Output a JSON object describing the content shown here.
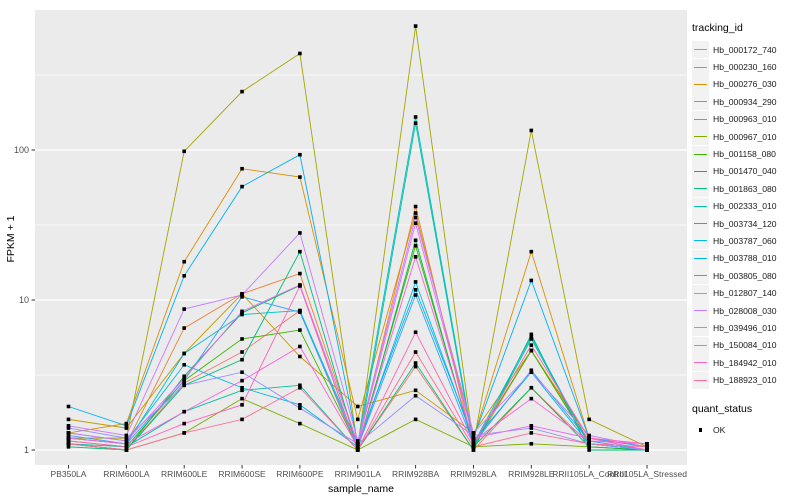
{
  "legend": {
    "tracking_title": "tracking_id",
    "quant_title": "quant_status",
    "quant_items": [
      "OK"
    ]
  },
  "panel": {
    "background": "#EBEBEB",
    "gridline_color": "#FFFFFF",
    "tick_color": "#333333",
    "label_color": "#4D4D4D"
  },
  "chart_data": {
    "type": "line",
    "title": "",
    "xlabel": "sample_name",
    "ylabel": "FPKM + 1",
    "scale": "log10",
    "yticks": [
      1,
      10,
      100
    ],
    "ytick_labels": [
      "1",
      "10",
      "100"
    ],
    "minor_gridlines": [
      3.1623,
      31.623,
      316.23
    ],
    "ylim": [
      0.79,
      860
    ],
    "grid": true,
    "legend_position": "right",
    "point_marker": "black-square",
    "categories": [
      "PB350LA",
      "RRIM600LA",
      "RRIM600LE",
      "RRIM600SE",
      "RRIM600PE",
      "RRIM901LA",
      "RRIM928BA",
      "RRIM928LA",
      "RRIM928LE",
      "RRII105LA_Control",
      "RRII105LA_Stressed"
    ],
    "series": [
      {
        "name": "Hb_000172_740",
        "color": "#F8766D",
        "values": [
          1.1,
          1.0,
          2.8,
          4.5,
          8.5,
          1.0,
          3.6,
          1.0,
          2.6,
          1.1,
          1.0
        ]
      },
      {
        "name": "Hb_000230_160",
        "color": "#EA8331",
        "values": [
          1.2,
          1.1,
          6.5,
          11,
          15,
          1.1,
          42,
          1.05,
          4.6,
          1.15,
          1.0
        ]
      },
      {
        "name": "Hb_000276_030",
        "color": "#D89000",
        "values": [
          1.3,
          1.5,
          18,
          75,
          66,
          1.6,
          38,
          1.2,
          21,
          1.2,
          1.05
        ]
      },
      {
        "name": "Hb_000934_290",
        "color": "#C09B00",
        "values": [
          1.6,
          1.4,
          4.4,
          11,
          4.2,
          1.95,
          2.5,
          1.3,
          4.6,
          1.2,
          1.0
        ]
      },
      {
        "name": "Hb_000963_010",
        "color": "#A3A500",
        "values": [
          1.2,
          1.2,
          98,
          245,
          440,
          1.05,
          670,
          1.1,
          135,
          1.6,
          1.05
        ]
      },
      {
        "name": "Hb_000967_010",
        "color": "#7CAE00",
        "values": [
          1.1,
          1.0,
          1.3,
          2.2,
          1.5,
          1.0,
          1.6,
          1.05,
          1.1,
          1.05,
          1.0
        ]
      },
      {
        "name": "Hb_001158_080",
        "color": "#39B600",
        "values": [
          1.15,
          1.05,
          2.9,
          5.5,
          6.3,
          1.05,
          23,
          1.1,
          4.6,
          1.1,
          1.0
        ]
      },
      {
        "name": "Hb_001470_040",
        "color": "#00BB4E",
        "values": [
          1.1,
          1.0,
          3.1,
          8.2,
          12.5,
          1.0,
          25,
          1.05,
          2.6,
          1.05,
          1.0
        ]
      },
      {
        "name": "Hb_001863_080",
        "color": "#00BF7D",
        "values": [
          1.05,
          1.0,
          2.7,
          4.0,
          21,
          1.0,
          3.8,
          1.0,
          5.9,
          1.0,
          1.0
        ]
      },
      {
        "name": "Hb_002333_010",
        "color": "#00C1A3",
        "values": [
          1.1,
          1.05,
          1.8,
          2.5,
          2.7,
          1.0,
          151,
          1.05,
          5.5,
          1.1,
          1.0
        ]
      },
      {
        "name": "Hb_003734_120",
        "color": "#00BFC4",
        "values": [
          1.2,
          1.1,
          4.4,
          8.0,
          8.5,
          1.1,
          166,
          1.1,
          5.7,
          1.1,
          1.0
        ]
      },
      {
        "name": "Hb_003787_060",
        "color": "#00BAE0",
        "values": [
          1.3,
          1.15,
          3.7,
          2.6,
          2.0,
          1.05,
          13.2,
          1.15,
          3.3,
          1.1,
          1.0
        ]
      },
      {
        "name": "Hb_003788_010",
        "color": "#00B0F6",
        "values": [
          1.95,
          1.45,
          14.5,
          57,
          93,
          1.1,
          11.7,
          1.2,
          13.5,
          1.2,
          1.05
        ]
      },
      {
        "name": "Hb_003805_080",
        "color": "#35A2FF",
        "values": [
          1.25,
          1.1,
          2.9,
          10.5,
          8.3,
          1.05,
          10.8,
          1.1,
          3.4,
          1.15,
          1.0
        ]
      },
      {
        "name": "Hb_012807_140",
        "color": "#9590FF",
        "values": [
          1.4,
          1.2,
          2.7,
          3.3,
          1.9,
          1.1,
          2.3,
          1.25,
          1.4,
          1.1,
          1.0
        ]
      },
      {
        "name": "Hb_028008_030",
        "color": "#C77CFF",
        "values": [
          1.45,
          1.25,
          8.7,
          10.8,
          28,
          1.15,
          35.5,
          1.3,
          3.3,
          1.25,
          1.05
        ]
      },
      {
        "name": "Hb_039496_010",
        "color": "#E76BF3",
        "values": [
          1.3,
          1.15,
          3.0,
          8.4,
          12.6,
          1.1,
          32.5,
          1.2,
          1.45,
          1.2,
          1.0
        ]
      },
      {
        "name": "Hb_150084_010",
        "color": "#FA62DB",
        "values": [
          1.2,
          1.1,
          1.8,
          2.9,
          4.9,
          1.05,
          19.4,
          1.15,
          2.2,
          1.15,
          1.1
        ]
      },
      {
        "name": "Hb_184942_010",
        "color": "#FF62BC",
        "values": [
          1.15,
          1.05,
          1.5,
          2.0,
          12.4,
          1.0,
          6.1,
          1.1,
          5.0,
          1.2,
          1.1
        ]
      },
      {
        "name": "Hb_188923_010",
        "color": "#FF6A98",
        "values": [
          1.1,
          1.0,
          1.3,
          1.6,
          2.6,
          1.0,
          4.5,
          1.05,
          1.3,
          1.1,
          1.05
        ]
      }
    ]
  }
}
